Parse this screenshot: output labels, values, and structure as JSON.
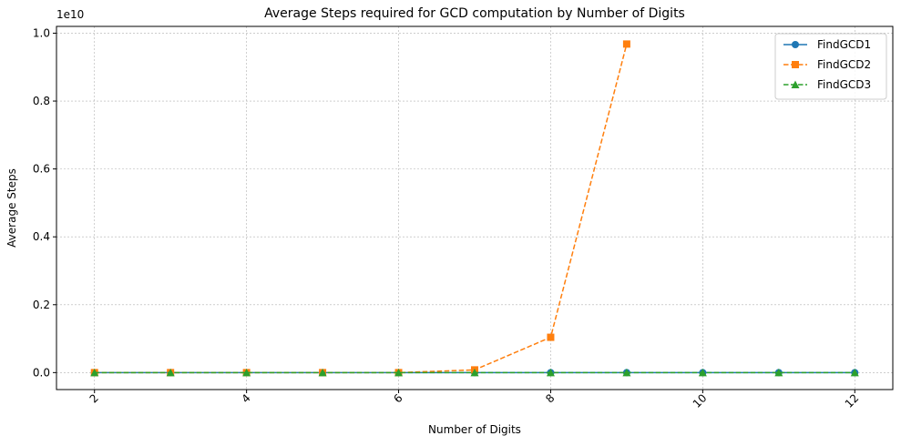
{
  "chart_data": {
    "type": "line",
    "title": "Average Steps required for GCD computation by Number of Digits",
    "xlabel": "Number of Digits",
    "ylabel": "Average Steps",
    "y_offset_label": "1e10",
    "x": [
      2,
      3,
      4,
      5,
      6,
      7,
      8,
      9,
      10,
      11,
      12
    ],
    "xlim": [
      1.5,
      12.5
    ],
    "ylim": [
      -0.05,
      1.02
    ],
    "y_scale": 10000000000,
    "x_ticks": [
      2,
      4,
      6,
      8,
      10,
      12
    ],
    "y_ticks": [
      0.0,
      0.2,
      0.4,
      0.6,
      0.8,
      1.0
    ],
    "y_tick_labels": [
      "0.0",
      "0.2",
      "0.4",
      "0.6",
      "0.8",
      "1.0"
    ],
    "x_tick_rotation": 45,
    "grid": true,
    "legend_position": "top-right",
    "series": [
      {
        "name": "FindGCD1",
        "color": "#1f77b4",
        "marker": "circle",
        "linestyle": "solid",
        "values": [
          0,
          0,
          0,
          0,
          0,
          0,
          0,
          0,
          0,
          0,
          0
        ]
      },
      {
        "name": "FindGCD2",
        "color": "#ff7f0e",
        "marker": "square",
        "linestyle": "dashed",
        "values": [
          0,
          0,
          0,
          0,
          0,
          0.008,
          0.104,
          0.968,
          null,
          null,
          null
        ]
      },
      {
        "name": "FindGCD3",
        "color": "#2ca02c",
        "marker": "triangle",
        "linestyle": "dashed",
        "values": [
          0,
          0,
          0,
          0,
          0,
          0,
          0,
          0,
          0,
          0,
          0
        ]
      }
    ]
  }
}
